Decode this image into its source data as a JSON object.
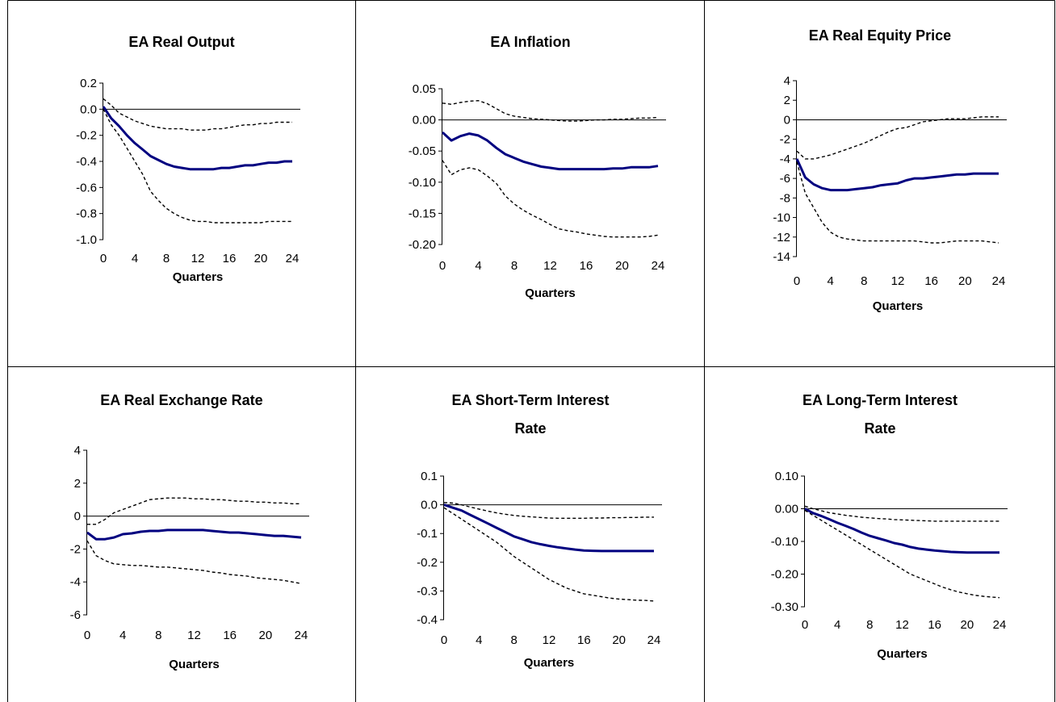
{
  "chart_data": [
    {
      "type": "line",
      "title": [
        "EA Real Output"
      ],
      "xlabel": "Quarters",
      "ylabel": "",
      "xlim": [
        0,
        24
      ],
      "ylim": [
        -1.0,
        0.2
      ],
      "xticks": [
        "0",
        "4",
        "8",
        "12",
        "16",
        "20",
        "24"
      ],
      "yticks": [
        "0.2",
        "0.0",
        "-0.2",
        "-0.4",
        "-0.6",
        "-0.8",
        "-1.0"
      ],
      "x": [
        0,
        1,
        2,
        3,
        4,
        5,
        6,
        7,
        8,
        9,
        10,
        11,
        12,
        13,
        14,
        15,
        16,
        17,
        18,
        19,
        20,
        21,
        22,
        23,
        24
      ],
      "series": [
        {
          "role": "estimate",
          "style": "solid",
          "color": "#000080",
          "values": [
            0.02,
            -0.07,
            -0.13,
            -0.2,
            -0.26,
            -0.31,
            -0.36,
            -0.39,
            -0.42,
            -0.44,
            -0.45,
            -0.46,
            -0.46,
            -0.46,
            -0.46,
            -0.45,
            -0.45,
            -0.44,
            -0.43,
            -0.43,
            -0.42,
            -0.41,
            -0.41,
            -0.4,
            -0.4
          ]
        },
        {
          "role": "upper-band",
          "style": "dashed",
          "color": "#000000",
          "values": [
            0.08,
            0.03,
            -0.03,
            -0.06,
            -0.09,
            -0.11,
            -0.13,
            -0.14,
            -0.15,
            -0.15,
            -0.15,
            -0.16,
            -0.16,
            -0.16,
            -0.15,
            -0.15,
            -0.14,
            -0.13,
            -0.12,
            -0.12,
            -0.11,
            -0.11,
            -0.1,
            -0.1,
            -0.1
          ]
        },
        {
          "role": "lower-band",
          "style": "dashed",
          "color": "#000000",
          "values": [
            0.0,
            -0.12,
            -0.2,
            -0.3,
            -0.4,
            -0.5,
            -0.63,
            -0.7,
            -0.76,
            -0.8,
            -0.83,
            -0.85,
            -0.86,
            -0.86,
            -0.87,
            -0.87,
            -0.87,
            -0.87,
            -0.87,
            -0.87,
            -0.87,
            -0.86,
            -0.86,
            -0.86,
            -0.86
          ]
        }
      ]
    },
    {
      "type": "line",
      "title": [
        "EA Inflation"
      ],
      "xlabel": "Quarters",
      "ylabel": "",
      "xlim": [
        0,
        24
      ],
      "ylim": [
        -0.2,
        0.05
      ],
      "xticks": [
        "0",
        "4",
        "8",
        "12",
        "16",
        "20",
        "24"
      ],
      "yticks": [
        "0.05",
        "0.00",
        "-0.05",
        "-0.10",
        "-0.15",
        "-0.20"
      ],
      "x": [
        0,
        1,
        2,
        3,
        4,
        5,
        6,
        7,
        8,
        9,
        10,
        11,
        12,
        13,
        14,
        15,
        16,
        17,
        18,
        19,
        20,
        21,
        22,
        23,
        24
      ],
      "series": [
        {
          "role": "estimate",
          "style": "solid",
          "color": "#000080",
          "values": [
            -0.02,
            -0.033,
            -0.026,
            -0.022,
            -0.025,
            -0.033,
            -0.045,
            -0.055,
            -0.061,
            -0.067,
            -0.071,
            -0.075,
            -0.077,
            -0.079,
            -0.079,
            -0.079,
            -0.079,
            -0.079,
            -0.079,
            -0.078,
            -0.078,
            -0.076,
            -0.076,
            -0.076,
            -0.074
          ]
        },
        {
          "role": "upper-band",
          "style": "dashed",
          "color": "#000000",
          "values": [
            0.027,
            0.025,
            0.028,
            0.03,
            0.031,
            0.026,
            0.018,
            0.01,
            0.006,
            0.004,
            0.002,
            0.001,
            0.0,
            -0.001,
            -0.002,
            -0.002,
            -0.001,
            0.0,
            0.0,
            0.001,
            0.001,
            0.002,
            0.003,
            0.003,
            0.004
          ]
        },
        {
          "role": "lower-band",
          "style": "dashed",
          "color": "#000000",
          "values": [
            -0.065,
            -0.088,
            -0.08,
            -0.077,
            -0.08,
            -0.09,
            -0.102,
            -0.122,
            -0.135,
            -0.145,
            -0.153,
            -0.16,
            -0.168,
            -0.175,
            -0.178,
            -0.18,
            -0.183,
            -0.185,
            -0.187,
            -0.188,
            -0.188,
            -0.188,
            -0.188,
            -0.187,
            -0.185
          ]
        }
      ]
    },
    {
      "type": "line",
      "title": [
        "EA Real Equity Price"
      ],
      "xlabel": "Quarters",
      "ylabel": "",
      "xlim": [
        0,
        24
      ],
      "ylim": [
        -14,
        4
      ],
      "xticks": [
        "0",
        "4",
        "8",
        "12",
        "16",
        "20",
        "24"
      ],
      "yticks": [
        "4",
        "2",
        "0",
        "-2",
        "-4",
        "-6",
        "-8",
        "-10",
        "-12",
        "-14"
      ],
      "x": [
        0,
        1,
        2,
        3,
        4,
        5,
        6,
        7,
        8,
        9,
        10,
        11,
        12,
        13,
        14,
        15,
        16,
        17,
        18,
        19,
        20,
        21,
        22,
        23,
        24
      ],
      "series": [
        {
          "role": "estimate",
          "style": "solid",
          "color": "#000080",
          "values": [
            -4.0,
            -5.9,
            -6.6,
            -7.0,
            -7.2,
            -7.2,
            -7.2,
            -7.1,
            -7.0,
            -6.9,
            -6.7,
            -6.6,
            -6.5,
            -6.2,
            -6.0,
            -6.0,
            -5.9,
            -5.8,
            -5.7,
            -5.6,
            -5.6,
            -5.5,
            -5.5,
            -5.5,
            -5.5
          ]
        },
        {
          "role": "upper-band",
          "style": "dashed",
          "color": "#000000",
          "values": [
            -3.2,
            -4.0,
            -4.0,
            -3.8,
            -3.6,
            -3.3,
            -3.0,
            -2.7,
            -2.4,
            -2.0,
            -1.6,
            -1.2,
            -0.9,
            -0.8,
            -0.5,
            -0.2,
            -0.1,
            0.0,
            0.1,
            0.1,
            0.1,
            0.2,
            0.3,
            0.3,
            0.3
          ]
        },
        {
          "role": "lower-band",
          "style": "dashed",
          "color": "#000000",
          "values": [
            -4.3,
            -7.5,
            -9.0,
            -10.5,
            -11.5,
            -12.0,
            -12.2,
            -12.3,
            -12.4,
            -12.4,
            -12.4,
            -12.4,
            -12.4,
            -12.4,
            -12.4,
            -12.5,
            -12.6,
            -12.6,
            -12.5,
            -12.4,
            -12.4,
            -12.4,
            -12.4,
            -12.5,
            -12.6
          ]
        }
      ]
    },
    {
      "type": "line",
      "title": [
        "EA Real Exchange Rate"
      ],
      "xlabel": "Quarters",
      "ylabel": "",
      "xlim": [
        0,
        24
      ],
      "ylim": [
        -6,
        4
      ],
      "xticks": [
        "0",
        "4",
        "8",
        "12",
        "16",
        "20",
        "24"
      ],
      "yticks": [
        "4",
        "2",
        "0",
        "-2",
        "-4",
        "-6"
      ],
      "x": [
        0,
        1,
        2,
        3,
        4,
        5,
        6,
        7,
        8,
        9,
        10,
        11,
        12,
        13,
        14,
        15,
        16,
        17,
        18,
        19,
        20,
        21,
        22,
        23,
        24
      ],
      "series": [
        {
          "role": "estimate",
          "style": "solid",
          "color": "#000080",
          "values": [
            -1.0,
            -1.4,
            -1.4,
            -1.3,
            -1.1,
            -1.05,
            -0.95,
            -0.9,
            -0.9,
            -0.85,
            -0.85,
            -0.85,
            -0.85,
            -0.85,
            -0.9,
            -0.95,
            -1.0,
            -1.0,
            -1.05,
            -1.1,
            -1.15,
            -1.2,
            -1.2,
            -1.25,
            -1.3
          ]
        },
        {
          "role": "upper-band",
          "style": "dashed",
          "color": "#000000",
          "values": [
            -0.5,
            -0.5,
            -0.2,
            0.2,
            0.4,
            0.6,
            0.8,
            1.0,
            1.05,
            1.1,
            1.1,
            1.1,
            1.05,
            1.05,
            1.0,
            1.0,
            0.95,
            0.9,
            0.9,
            0.85,
            0.85,
            0.8,
            0.8,
            0.75,
            0.75
          ]
        },
        {
          "role": "lower-band",
          "style": "dashed",
          "color": "#000000",
          "values": [
            -1.5,
            -2.4,
            -2.7,
            -2.9,
            -2.95,
            -3.0,
            -3.0,
            -3.05,
            -3.1,
            -3.1,
            -3.15,
            -3.2,
            -3.25,
            -3.3,
            -3.4,
            -3.45,
            -3.55,
            -3.6,
            -3.65,
            -3.75,
            -3.8,
            -3.85,
            -3.9,
            -4.0,
            -4.1
          ]
        }
      ]
    },
    {
      "type": "line",
      "title": [
        "EA Short-Term Interest",
        "Rate"
      ],
      "xlabel": "Quarters",
      "ylabel": "",
      "xlim": [
        0,
        24
      ],
      "ylim": [
        -0.4,
        0.1
      ],
      "xticks": [
        "0",
        "4",
        "8",
        "12",
        "16",
        "20",
        "24"
      ],
      "yticks": [
        "0.1",
        "0.0",
        "-0.1",
        "-0.2",
        "-0.3",
        "-0.4"
      ],
      "x": [
        0,
        1,
        2,
        3,
        4,
        5,
        6,
        7,
        8,
        9,
        10,
        11,
        12,
        13,
        14,
        15,
        16,
        17,
        18,
        19,
        20,
        21,
        22,
        23,
        24
      ],
      "series": [
        {
          "role": "estimate",
          "style": "solid",
          "color": "#000080",
          "values": [
            0.0,
            -0.01,
            -0.02,
            -0.035,
            -0.05,
            -0.065,
            -0.08,
            -0.095,
            -0.11,
            -0.12,
            -0.13,
            -0.137,
            -0.143,
            -0.148,
            -0.152,
            -0.156,
            -0.159,
            -0.16,
            -0.161,
            -0.161,
            -0.161,
            -0.161,
            -0.161,
            -0.161,
            -0.161
          ]
        },
        {
          "role": "upper-band",
          "style": "dashed",
          "color": "#000000",
          "values": [
            0.008,
            0.006,
            0.0,
            -0.008,
            -0.015,
            -0.022,
            -0.028,
            -0.033,
            -0.037,
            -0.04,
            -0.042,
            -0.044,
            -0.046,
            -0.047,
            -0.047,
            -0.047,
            -0.047,
            -0.046,
            -0.046,
            -0.045,
            -0.045,
            -0.044,
            -0.044,
            -0.043,
            -0.043
          ]
        },
        {
          "role": "lower-band",
          "style": "dashed",
          "color": "#000000",
          "values": [
            -0.01,
            -0.03,
            -0.05,
            -0.07,
            -0.09,
            -0.11,
            -0.13,
            -0.155,
            -0.18,
            -0.2,
            -0.22,
            -0.24,
            -0.26,
            -0.275,
            -0.29,
            -0.3,
            -0.31,
            -0.315,
            -0.32,
            -0.325,
            -0.328,
            -0.33,
            -0.332,
            -0.333,
            -0.335
          ]
        }
      ]
    },
    {
      "type": "line",
      "title": [
        "EA Long-Term Interest",
        "Rate"
      ],
      "xlabel": "Quarters",
      "ylabel": "",
      "xlim": [
        0,
        24
      ],
      "ylim": [
        -0.3,
        0.1
      ],
      "xticks": [
        "0",
        "4",
        "8",
        "12",
        "16",
        "20",
        "24"
      ],
      "yticks": [
        "0.10",
        "0.00",
        "-0.10",
        "-0.20",
        "-0.30"
      ],
      "x": [
        0,
        1,
        2,
        3,
        4,
        5,
        6,
        7,
        8,
        9,
        10,
        11,
        12,
        13,
        14,
        15,
        16,
        17,
        18,
        19,
        20,
        21,
        22,
        23,
        24
      ],
      "series": [
        {
          "role": "estimate",
          "style": "solid",
          "color": "#000080",
          "values": [
            0.0,
            -0.013,
            -0.022,
            -0.032,
            -0.043,
            -0.052,
            -0.062,
            -0.073,
            -0.083,
            -0.09,
            -0.097,
            -0.105,
            -0.11,
            -0.117,
            -0.122,
            -0.125,
            -0.128,
            -0.13,
            -0.132,
            -0.133,
            -0.134,
            -0.134,
            -0.134,
            -0.134,
            -0.134
          ]
        },
        {
          "role": "upper-band",
          "style": "dashed",
          "color": "#000000",
          "values": [
            0.008,
            0.0,
            -0.006,
            -0.012,
            -0.016,
            -0.02,
            -0.023,
            -0.026,
            -0.028,
            -0.03,
            -0.031,
            -0.033,
            -0.034,
            -0.035,
            -0.036,
            -0.037,
            -0.038,
            -0.038,
            -0.038,
            -0.038,
            -0.038,
            -0.038,
            -0.038,
            -0.038,
            -0.038
          ]
        },
        {
          "role": "lower-band",
          "style": "dashed",
          "color": "#000000",
          "values": [
            -0.005,
            -0.02,
            -0.035,
            -0.05,
            -0.065,
            -0.08,
            -0.095,
            -0.11,
            -0.125,
            -0.14,
            -0.155,
            -0.17,
            -0.185,
            -0.2,
            -0.21,
            -0.22,
            -0.23,
            -0.24,
            -0.248,
            -0.255,
            -0.26,
            -0.265,
            -0.268,
            -0.27,
            -0.272
          ]
        }
      ]
    }
  ]
}
